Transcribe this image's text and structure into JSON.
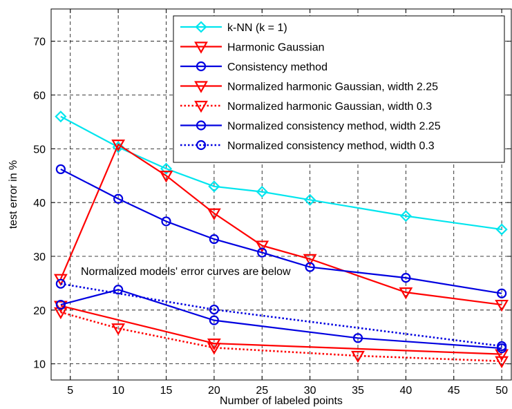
{
  "chart_data": {
    "type": "line",
    "title": "",
    "xlabel": "Number of labeled points",
    "ylabel": "test error in %",
    "xlim": [
      3,
      51
    ],
    "ylim": [
      7,
      76
    ],
    "xticks": [
      5,
      10,
      15,
      20,
      25,
      30,
      35,
      40,
      45,
      50
    ],
    "yticks": [
      10,
      20,
      30,
      40,
      50,
      60,
      70
    ],
    "grid": true,
    "legend_position": "top-right",
    "annotation": "Normalized models' error curves are below",
    "series": [
      {
        "name": "k-NN (k = 1)",
        "color": "#00e5ee",
        "linestyle": "solid",
        "marker": "diamond",
        "x": [
          4,
          10,
          15,
          20,
          25,
          30,
          40,
          50
        ],
        "y": [
          56,
          50.3,
          46.3,
          43,
          42,
          40.5,
          37.5,
          35
        ]
      },
      {
        "name": "Harmonic Gaussian",
        "color": "#ff0000",
        "linestyle": "solid",
        "marker": "triangle-down",
        "x": [
          4,
          10,
          15,
          20,
          25,
          30,
          40,
          50
        ],
        "y": [
          25.8,
          50.8,
          45,
          38,
          32,
          29.5,
          23.3,
          21
        ]
      },
      {
        "name": "Consistency method",
        "color": "#0000e0",
        "linestyle": "solid",
        "marker": "circle",
        "x": [
          4,
          10,
          15,
          20,
          25,
          30,
          40,
          50
        ],
        "y": [
          46.2,
          40.7,
          36.5,
          33.2,
          30.7,
          28,
          26,
          23.1
        ]
      },
      {
        "name": "Normalized harmonic Gaussian, width 2.25",
        "color": "#ff0000",
        "linestyle": "solid",
        "marker": "triangle-down",
        "x": [
          4,
          20,
          50
        ],
        "y": [
          20.8,
          13.8,
          11.8
        ]
      },
      {
        "name": "Normalized harmonic Gaussian, width 0.3",
        "color": "#ff0000",
        "linestyle": "dotted",
        "marker": "triangle-down",
        "x": [
          4,
          10,
          20,
          35,
          50
        ],
        "y": [
          19.6,
          16.6,
          13,
          11.5,
          10.5
        ]
      },
      {
        "name": "Normalized consistency method, width 2.25",
        "color": "#0000e0",
        "linestyle": "solid",
        "marker": "circle",
        "x": [
          4,
          10,
          20,
          35,
          50
        ],
        "y": [
          21,
          23.8,
          18.1,
          14.8,
          12.9
        ]
      },
      {
        "name": "Normalized consistency method, width 0.3",
        "color": "#0000e0",
        "linestyle": "dotted",
        "marker": "circle",
        "x": [
          4,
          20,
          50
        ],
        "y": [
          24.9,
          20.1,
          13.3
        ]
      }
    ]
  }
}
